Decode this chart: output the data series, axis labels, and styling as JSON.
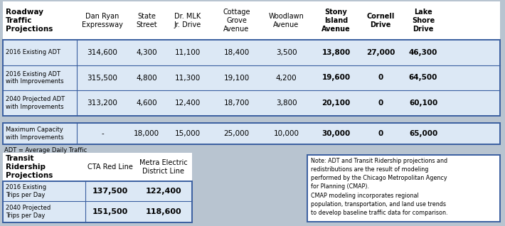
{
  "roadway_header": [
    "Roadway\nTraffic\nProjections",
    "Dan Ryan\nExpressway",
    "State\nStreet",
    "Dr. MLK\nJr. Drive",
    "Cottage\nGrove\nAvenue",
    "Woodlawn\nAvenue",
    "Stony\nIsland\nAvenue",
    "Cornell\nDrive",
    "Lake\nShore\nDrive"
  ],
  "roadway_rows": [
    [
      "2016 Existing ADT",
      "314,600",
      "4,300",
      "11,100",
      "18,400",
      "3,500",
      "13,800",
      "27,000",
      "46,300"
    ],
    [
      "2016 Existing ADT\nwith Improvements",
      "315,500",
      "4,800",
      "11,300",
      "19,100",
      "4,200",
      "19,600",
      "0",
      "64,500"
    ],
    [
      "2040 Projected ADT\nwith Improvements",
      "313,200",
      "4,600",
      "12,400",
      "18,700",
      "3,800",
      "20,100",
      "0",
      "60,100"
    ]
  ],
  "capacity_row": [
    "Maximum Capacity\nwith Improvements",
    "-",
    "18,000",
    "15,000",
    "25,000",
    "10,000",
    "30,000",
    "0",
    "65,000"
  ],
  "transit_header": [
    "Transit\nRidership\nProjections",
    "CTA Red Line",
    "Metra Electric\nDistrict Line"
  ],
  "transit_rows": [
    [
      "2016 Existing\nTrips per Day",
      "137,500",
      "122,400"
    ],
    [
      "2040 Projected\nTrips per Day",
      "151,500",
      "118,600"
    ]
  ],
  "adt_note": "ADT = Average Daily Traffic",
  "note_text": "Note: ADT and Transit Ridership projections and\nredistributions are the result of modeling\nperformed by the Chicago Metropolitan Agency\nfor Planning (CMAP).\nCMAP modeling incorporates regional\npopulation, transportation, and land use trends\nto develop baseline traffic data for comparison.",
  "bg_color": "#b8c4d0",
  "border_color": "#3a5fa0",
  "white": "#ffffff",
  "light_blue_row": "#dce6f0"
}
